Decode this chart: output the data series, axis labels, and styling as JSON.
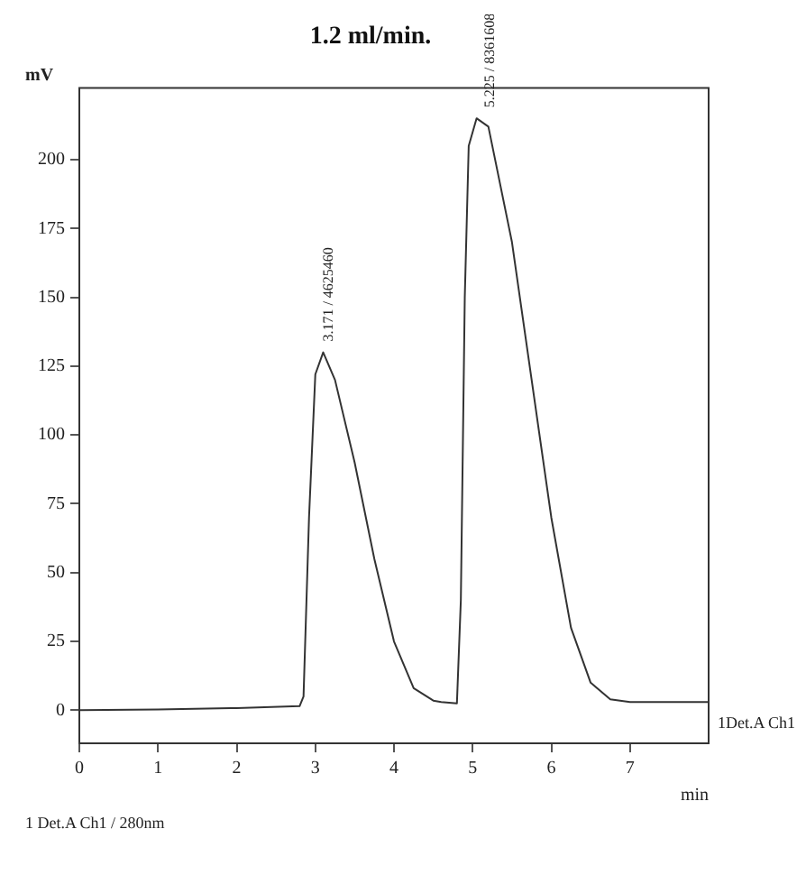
{
  "chart_data": {
    "type": "line",
    "title": "1.2 ml/min.",
    "xlabel": "min",
    "ylabel": "mV",
    "x": [
      0,
      1,
      2,
      2.8,
      2.85,
      2.92,
      3.0,
      3.1,
      3.25,
      3.5,
      3.75,
      4.0,
      4.25,
      4.5,
      4.6,
      4.8,
      4.85,
      4.9,
      4.95,
      5.05,
      5.2,
      5.5,
      5.75,
      6.0,
      6.25,
      6.5,
      6.75,
      7.0,
      8.0
    ],
    "series": [
      {
        "name": "1Det.A Ch1",
        "color": "#333333",
        "values": [
          0,
          0.3,
          0.8,
          1.5,
          5,
          70,
          122,
          130,
          120,
          90,
          55,
          25,
          8,
          3.5,
          3,
          2.5,
          40,
          150,
          205,
          215,
          212,
          170,
          120,
          70,
          30,
          10,
          4,
          3,
          3
        ]
      }
    ],
    "xlim": [
      0,
      8
    ],
    "xticks": [
      0,
      1,
      2,
      3,
      4,
      5,
      6,
      7
    ],
    "ylim": [
      -12,
      226
    ],
    "yticks": [
      0,
      25,
      50,
      75,
      100,
      125,
      150,
      175,
      200
    ],
    "grid": false,
    "legend": false,
    "marker": "none",
    "line_style": "solid",
    "annotations": [
      {
        "text": "3.171 / 4625460",
        "x": 3.171,
        "y": 130
      },
      {
        "text": "5.225 / 8361608",
        "x": 5.225,
        "y": 215
      },
      "1 Det.A Ch1 / 280nm"
    ]
  }
}
